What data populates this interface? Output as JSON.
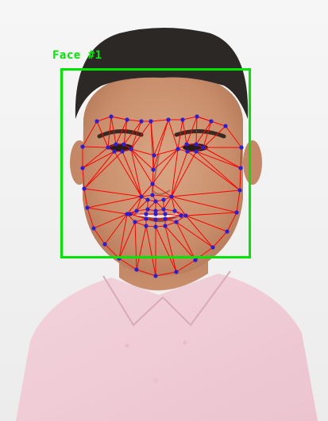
{
  "detection": {
    "label": "Face #1",
    "box_color": "#00e600",
    "mesh_color": "#ff0000",
    "landmark_color": "#2a1fd6"
  }
}
